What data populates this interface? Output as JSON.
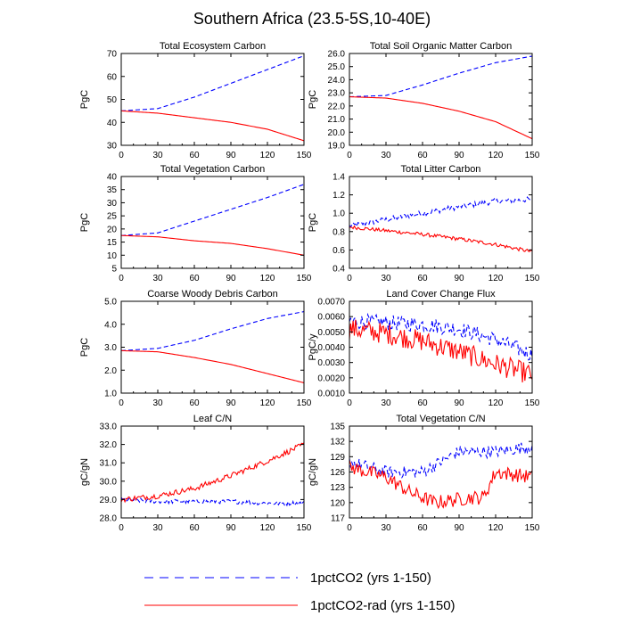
{
  "title": "Southern Africa (23.5-5S,10-40E)",
  "colors": {
    "pctCO2": "#0000ff",
    "rad": "#ff0000",
    "axis": "#000000"
  },
  "legend": [
    {
      "label": "1pctCO2 (yrs 1-150)",
      "color": "#0000ff",
      "dash": true
    },
    {
      "label": "1pctCO2-rad (yrs 1-150)",
      "color": "#ff0000",
      "dash": false
    }
  ],
  "chart_data": [
    {
      "type": "line",
      "title": "Total Ecosystem Carbon",
      "ylabel": "PgC",
      "xlim": [
        0,
        150
      ],
      "xticks": [
        0,
        30,
        60,
        90,
        120,
        150
      ],
      "ylim": [
        30,
        70
      ],
      "yticks": [
        "30",
        "40",
        "50",
        "60",
        "70"
      ],
      "noise": [
        0,
        0
      ],
      "series": [
        {
          "key": "1pctCO2",
          "knots": [
            [
              0,
              45
            ],
            [
              30,
              46
            ],
            [
              60,
              51
            ],
            [
              90,
              57
            ],
            [
              120,
              63
            ],
            [
              150,
              69
            ]
          ]
        },
        {
          "key": "1pctCO2-rad",
          "knots": [
            [
              0,
              45
            ],
            [
              30,
              44
            ],
            [
              60,
              42
            ],
            [
              90,
              40
            ],
            [
              120,
              37
            ],
            [
              150,
              32
            ]
          ]
        }
      ]
    },
    {
      "type": "line",
      "title": "Total Soil Organic Matter Carbon",
      "ylabel": "PgC",
      "xlim": [
        0,
        150
      ],
      "xticks": [
        0,
        30,
        60,
        90,
        120,
        150
      ],
      "ylim": [
        19,
        26
      ],
      "yticks": [
        "19.0",
        "20.0",
        "21.0",
        "22.0",
        "23.0",
        "24.0",
        "25.0",
        "26.0"
      ],
      "noise": [
        0,
        0
      ],
      "series": [
        {
          "key": "1pctCO2",
          "knots": [
            [
              0,
              22.7
            ],
            [
              30,
              22.8
            ],
            [
              60,
              23.6
            ],
            [
              90,
              24.5
            ],
            [
              120,
              25.3
            ],
            [
              150,
              25.8
            ]
          ]
        },
        {
          "key": "1pctCO2-rad",
          "knots": [
            [
              0,
              22.7
            ],
            [
              30,
              22.6
            ],
            [
              60,
              22.2
            ],
            [
              90,
              21.6
            ],
            [
              120,
              20.8
            ],
            [
              150,
              19.5
            ]
          ]
        }
      ]
    },
    {
      "type": "line",
      "title": "Total Vegetation Carbon",
      "ylabel": "PgC",
      "xlim": [
        0,
        150
      ],
      "xticks": [
        0,
        30,
        60,
        90,
        120,
        150
      ],
      "ylim": [
        5,
        40
      ],
      "yticks": [
        "5",
        "10",
        "15",
        "20",
        "25",
        "30",
        "35",
        "40"
      ],
      "noise": [
        0,
        0
      ],
      "series": [
        {
          "key": "1pctCO2",
          "knots": [
            [
              0,
              17.5
            ],
            [
              30,
              18.5
            ],
            [
              60,
              23
            ],
            [
              90,
              27.5
            ],
            [
              120,
              32
            ],
            [
              150,
              37
            ]
          ]
        },
        {
          "key": "1pctCO2-rad",
          "knots": [
            [
              0,
              17.5
            ],
            [
              30,
              17
            ],
            [
              60,
              15.5
            ],
            [
              90,
              14.5
            ],
            [
              120,
              12.5
            ],
            [
              150,
              10
            ]
          ]
        }
      ]
    },
    {
      "type": "line",
      "title": "Total Litter Carbon",
      "ylabel": "PgC",
      "xlim": [
        0,
        150
      ],
      "xticks": [
        0,
        30,
        60,
        90,
        120,
        150
      ],
      "ylim": [
        0.4,
        1.4
      ],
      "yticks": [
        "0.4",
        "0.6",
        "0.8",
        "1.0",
        "1.2",
        "1.4"
      ],
      "noise": [
        0.03,
        0.02
      ],
      "series": [
        {
          "key": "1pctCO2",
          "knots": [
            [
              0,
              0.86
            ],
            [
              30,
              0.93
            ],
            [
              60,
              1.0
            ],
            [
              90,
              1.07
            ],
            [
              120,
              1.13
            ],
            [
              150,
              1.15
            ]
          ]
        },
        {
          "key": "1pctCO2-rad",
          "knots": [
            [
              0,
              0.85
            ],
            [
              30,
              0.81
            ],
            [
              60,
              0.77
            ],
            [
              90,
              0.72
            ],
            [
              120,
              0.66
            ],
            [
              150,
              0.58
            ]
          ]
        }
      ]
    },
    {
      "type": "line",
      "title": "Coarse Woody Debris Carbon",
      "ylabel": "PgC",
      "xlim": [
        0,
        150
      ],
      "xticks": [
        0,
        30,
        60,
        90,
        120,
        150
      ],
      "ylim": [
        1,
        5
      ],
      "yticks": [
        "1.0",
        "2.0",
        "3.0",
        "4.0",
        "5.0"
      ],
      "noise": [
        0,
        0
      ],
      "series": [
        {
          "key": "1pctCO2",
          "knots": [
            [
              0,
              2.85
            ],
            [
              30,
              2.95
            ],
            [
              60,
              3.3
            ],
            [
              90,
              3.8
            ],
            [
              120,
              4.25
            ],
            [
              150,
              4.55
            ]
          ]
        },
        {
          "key": "1pctCO2-rad",
          "knots": [
            [
              0,
              2.85
            ],
            [
              30,
              2.8
            ],
            [
              60,
              2.55
            ],
            [
              90,
              2.25
            ],
            [
              120,
              1.85
            ],
            [
              150,
              1.45
            ]
          ]
        }
      ]
    },
    {
      "type": "line",
      "title": "Land Cover Change Flux",
      "ylabel": "PgC/y",
      "xlim": [
        0,
        150
      ],
      "xticks": [
        0,
        30,
        60,
        90,
        120,
        150
      ],
      "ylim": [
        0.001,
        0.007
      ],
      "yticks": [
        "0.0010",
        "0.0020",
        "0.0030",
        "0.0040",
        "0.0050",
        "0.0060",
        "0.0070"
      ],
      "noise": [
        0.0005,
        0.0007
      ],
      "series": [
        {
          "key": "1pctCO2",
          "knots": [
            [
              0,
              0.0057
            ],
            [
              30,
              0.0056
            ],
            [
              60,
              0.0055
            ],
            [
              90,
              0.0052
            ],
            [
              120,
              0.0045
            ],
            [
              150,
              0.0035
            ]
          ]
        },
        {
          "key": "1pctCO2-rad",
          "knots": [
            [
              0,
              0.0052
            ],
            [
              30,
              0.0049
            ],
            [
              60,
              0.0044
            ],
            [
              90,
              0.0037
            ],
            [
              120,
              0.0029
            ],
            [
              150,
              0.0022
            ]
          ]
        }
      ]
    },
    {
      "type": "line",
      "title": "Leaf C/N",
      "ylabel": "gC/gN",
      "xlim": [
        0,
        150
      ],
      "xticks": [
        0,
        30,
        60,
        90,
        120,
        150
      ],
      "ylim": [
        28,
        33
      ],
      "yticks": [
        "28.0",
        "29.0",
        "30.0",
        "31.0",
        "32.0",
        "33.0"
      ],
      "noise": [
        0.12,
        0.15
      ],
      "series": [
        {
          "key": "1pctCO2",
          "knots": [
            [
              0,
              29.0
            ],
            [
              30,
              28.9
            ],
            [
              60,
              28.9
            ],
            [
              90,
              28.9
            ],
            [
              120,
              28.8
            ],
            [
              150,
              28.8
            ]
          ]
        },
        {
          "key": "1pctCO2-rad",
          "knots": [
            [
              0,
              29.0
            ],
            [
              30,
              29.2
            ],
            [
              60,
              29.6
            ],
            [
              90,
              30.3
            ],
            [
              120,
              31.1
            ],
            [
              150,
              32.0
            ]
          ]
        }
      ]
    },
    {
      "type": "line",
      "title": "Total Vegetation C/N",
      "ylabel": "gC/gN",
      "xlim": [
        0,
        150
      ],
      "xticks": [
        0,
        30,
        60,
        90,
        120,
        150
      ],
      "ylim": [
        117,
        135
      ],
      "yticks": [
        "117",
        "120",
        "123",
        "126",
        "129",
        "132",
        "135"
      ],
      "noise": [
        1.2,
        1.4
      ],
      "series": [
        {
          "key": "1pctCO2",
          "knots": [
            [
              0,
              128
            ],
            [
              30,
              126
            ],
            [
              60,
              126
            ],
            [
              90,
              130
            ],
            [
              120,
              130
            ],
            [
              150,
              131
            ]
          ]
        },
        {
          "key": "1pctCO2-rad",
          "knots": [
            [
              0,
              127
            ],
            [
              30,
              125
            ],
            [
              50,
              122
            ],
            [
              70,
              120
            ],
            [
              100,
              121
            ],
            [
              110,
              121
            ],
            [
              120,
              126
            ],
            [
              150,
              125
            ]
          ]
        }
      ]
    }
  ]
}
